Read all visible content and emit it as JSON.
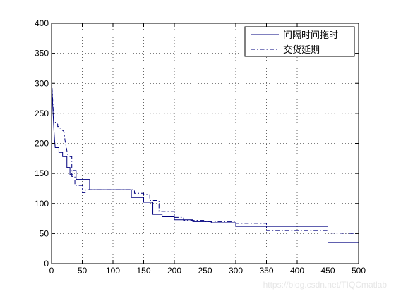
{
  "chart_data": {
    "type": "line",
    "title": "",
    "xlabel": "",
    "ylabel": "",
    "xlim": [
      0,
      500
    ],
    "ylim": [
      0,
      400
    ],
    "xticks": [
      0,
      50,
      100,
      150,
      200,
      250,
      300,
      350,
      400,
      450,
      500
    ],
    "yticks": [
      0,
      50,
      100,
      150,
      200,
      250,
      300,
      350,
      400
    ],
    "grid": true,
    "legend_position": "top-right",
    "series": [
      {
        "name": "间隔时间拖时",
        "style": "solid",
        "color": "#00007f",
        "x": [
          0,
          1,
          2,
          3,
          4,
          5,
          6,
          12,
          12,
          18,
          18,
          25,
          25,
          30,
          30,
          35,
          35,
          40,
          40,
          62,
          62,
          130,
          130,
          150,
          150,
          165,
          165,
          180,
          180,
          200,
          200,
          230,
          230,
          260,
          260,
          300,
          300,
          450,
          450,
          500
        ],
        "y": [
          300,
          285,
          260,
          240,
          220,
          205,
          193,
          193,
          185,
          185,
          178,
          178,
          160,
          160,
          148,
          148,
          155,
          155,
          140,
          140,
          123,
          123,
          110,
          110,
          102,
          102,
          82,
          82,
          78,
          78,
          73,
          73,
          70,
          70,
          68,
          68,
          62,
          62,
          35,
          35
        ]
      },
      {
        "name": "交货延期",
        "style": "dashdot",
        "color": "#00007f",
        "x": [
          0,
          1,
          2,
          3,
          4,
          5,
          8,
          10,
          10,
          14,
          14,
          20,
          22,
          26,
          30,
          33,
          33,
          38,
          38,
          50,
          50,
          55,
          55,
          135,
          135,
          150,
          150,
          160,
          160,
          175,
          175,
          200,
          200,
          215,
          215,
          250,
          250,
          300,
          300,
          350,
          350,
          450,
          450,
          500
        ],
        "y": [
          308,
          290,
          270,
          250,
          238,
          235,
          235,
          232,
          228,
          228,
          225,
          220,
          205,
          182,
          178,
          178,
          145,
          145,
          130,
          130,
          118,
          118,
          123,
          123,
          117,
          117,
          115,
          115,
          105,
          105,
          87,
          87,
          77,
          77,
          72,
          72,
          70,
          70,
          67,
          67,
          55,
          55,
          51,
          50
        ]
      }
    ]
  },
  "watermark": "https://blog.csdn.net/TIQCmatlab"
}
